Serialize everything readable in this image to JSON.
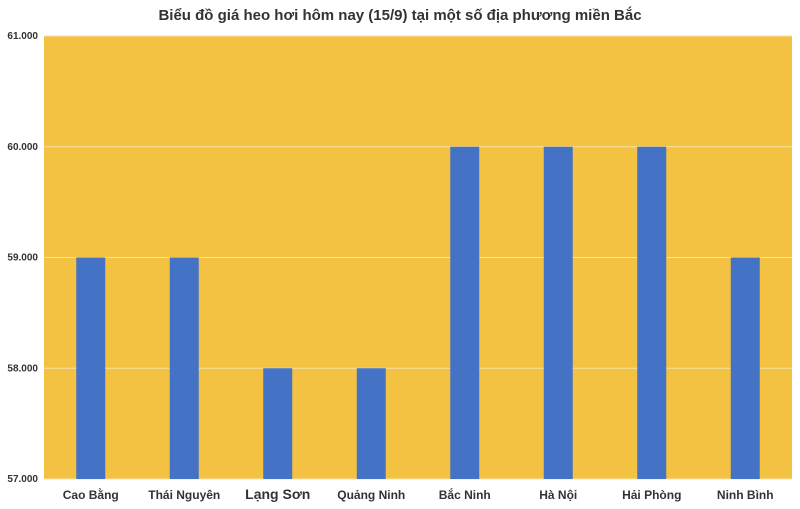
{
  "chart_data": {
    "type": "bar",
    "title": "Biểu đồ giá heo hơi hôm nay (15/9) tại một số địa phương miền Bắc",
    "xlabel": "",
    "ylabel": "",
    "categories": [
      "Cao Bằng",
      "Thái Nguyên",
      "Lạng Sơn",
      "Quảng Ninh",
      "Bắc Ninh",
      "Hà Nội",
      "Hải Phòng",
      "Ninh Bình"
    ],
    "values": [
      59000,
      59000,
      58000,
      58000,
      60000,
      60000,
      60000,
      59000
    ],
    "ylim": [
      57000,
      61000
    ],
    "yticks": [
      57000,
      58000,
      59000,
      60000,
      61000
    ],
    "ytick_labels": [
      "57.000",
      "58.000",
      "59.000",
      "60.000",
      "61.000"
    ],
    "grid": true,
    "legend": "none",
    "colors": {
      "bar": "#4472c4",
      "plot_background": "#f4c242",
      "gridline": "#f8e3a6"
    }
  }
}
